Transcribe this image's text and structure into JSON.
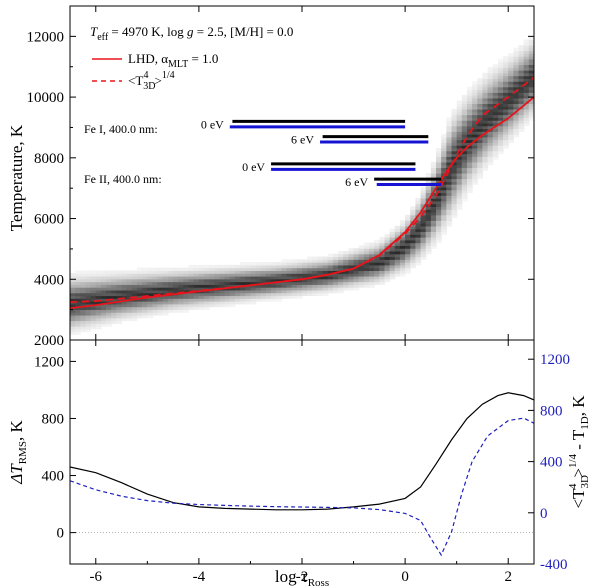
{
  "chart_data": [
    {
      "type": "heatmap",
      "panel": "top",
      "ylabel": "Temperature, K",
      "xlim": [
        -6.5,
        2.5
      ],
      "ylim": [
        2000,
        13000
      ],
      "yticks": [
        2000,
        4000,
        6000,
        8000,
        10000,
        12000
      ],
      "ytick_labels": [
        "2000",
        "4000",
        "6000",
        "8000",
        "10000",
        "12000"
      ],
      "title_params": {
        "teff_sym": "T",
        "teff_sub": "eff",
        "teff_val": " = 4970 K, log ",
        "g_sym": "g",
        "g_val": " = 2.5, [M/H] = 0.0"
      },
      "legend": {
        "lhd_label": "LHD, α",
        "lhd_sub": "MLT",
        "lhd_val": " = 1.0",
        "avg_label_a": "<T",
        "avg_label_sub": "3D",
        "avg_label_sup": "4",
        "avg_label_b": ">",
        "avg_label_sup2": "1/4"
      },
      "heatmap_band": {
        "x": [
          -6.5,
          -5.5,
          -4.5,
          -3.5,
          -2.5,
          -1.5,
          -0.5,
          0.0,
          0.3,
          0.6,
          0.9,
          1.2,
          1.6,
          2.0,
          2.5
        ],
        "median": [
          3200,
          3450,
          3650,
          3800,
          3950,
          4150,
          4550,
          5100,
          5700,
          6600,
          7700,
          8500,
          9300,
          9900,
          10700
        ],
        "halfwidth": [
          900,
          750,
          650,
          600,
          550,
          550,
          650,
          800,
          1000,
          1300,
          1600,
          1500,
          1400,
          1300,
          1200
        ]
      },
      "series": [
        {
          "name": "LHD, αMLT = 1.0",
          "color": "#e8141b",
          "style": "solid",
          "x": [
            -6.5,
            -6.0,
            -5.0,
            -4.0,
            -3.0,
            -2.0,
            -1.5,
            -1.0,
            -0.5,
            0.0,
            0.3,
            0.6,
            0.8,
            1.0,
            1.2,
            1.5,
            2.0,
            2.5
          ],
          "y": [
            3050,
            3150,
            3400,
            3600,
            3800,
            4000,
            4150,
            4350,
            4800,
            5550,
            6200,
            7000,
            7550,
            8000,
            8350,
            8750,
            9300,
            10000
          ]
        },
        {
          "name": "<T3D^4>^1/4",
          "color": "#e8141b",
          "style": "dashed",
          "x": [
            -6.5,
            -6.0,
            -5.0,
            -4.0,
            -3.0,
            -2.0,
            -1.5,
            -1.0,
            -0.5,
            0.0,
            0.3,
            0.6,
            0.8,
            1.0,
            1.2,
            1.5,
            2.0,
            2.5
          ],
          "y": [
            3250,
            3280,
            3450,
            3620,
            3800,
            4000,
            4150,
            4350,
            4780,
            5500,
            6050,
            6750,
            7400,
            8100,
            8700,
            9400,
            10000,
            10650
          ]
        }
      ],
      "formation_bars": [
        {
          "group": "Fe I, 400.0 nm:",
          "label": "0 eV",
          "black": [
            -3.35,
            0.0
          ],
          "blue": [
            -3.4,
            0.0
          ],
          "y_black": 9200,
          "y_blue": 9020
        },
        {
          "group": "Fe I, 400.0 nm:",
          "label": "6 eV",
          "black": [
            -1.6,
            0.45
          ],
          "blue": [
            -1.65,
            0.45
          ],
          "y_black": 8700,
          "y_blue": 8520
        },
        {
          "group": "Fe II, 400.0 nm:",
          "label": "0 eV",
          "black": [
            -2.6,
            0.2
          ],
          "blue": [
            -2.6,
            0.2
          ],
          "y_black": 7800,
          "y_blue": 7620
        },
        {
          "group": "Fe II, 400.0 nm:",
          "label": "6 eV",
          "black": [
            -0.6,
            0.7
          ],
          "blue": [
            -0.55,
            0.7
          ],
          "y_black": 7300,
          "y_blue": 7120
        }
      ],
      "group_labels": {
        "fe1": "Fe I, 400.0 nm:",
        "fe2": "Fe II, 400.0 nm:"
      }
    },
    {
      "type": "line",
      "panel": "bottom",
      "xlabel_sym": "log τ",
      "xlabel_sub": "Ross",
      "xlim": [
        -6.5,
        2.5
      ],
      "xticks": [
        -6,
        -4,
        -2,
        0,
        2
      ],
      "xtick_labels": [
        "-6",
        "-4",
        "-2",
        "0",
        "2"
      ],
      "left_axis": {
        "label_a": "ΔT",
        "label_sub": "RMS",
        "label_b": ", K",
        "ylim": [
          -220,
          1350
        ],
        "yticks": [
          0,
          400,
          800,
          1200
        ],
        "ytick_labels": [
          "0",
          "400",
          "800",
          "1200"
        ]
      },
      "right_axis": {
        "label_a": "<T",
        "label_sub1": "3D",
        "label_sup1": "4",
        "label_b": ">",
        "label_sup2": "1/4",
        "label_c": " - T",
        "label_sub2": "1D",
        "label_d": ", K",
        "ylim": [
          -400,
          1350
        ],
        "yticks": [
          -400,
          0,
          400,
          800,
          1200
        ],
        "ytick_labels": [
          "-400",
          "0",
          "400",
          "800",
          "1200"
        ],
        "color": "#1f1fbf"
      },
      "series": [
        {
          "name": "ΔT_RMS",
          "axis": "left",
          "color": "#000000",
          "style": "solid",
          "x": [
            -6.5,
            -6.0,
            -5.5,
            -5.0,
            -4.5,
            -4.0,
            -3.5,
            -3.0,
            -2.5,
            -2.0,
            -1.5,
            -1.0,
            -0.5,
            0.0,
            0.3,
            0.6,
            0.9,
            1.2,
            1.5,
            1.8,
            2.0,
            2.3,
            2.5
          ],
          "y": [
            460,
            420,
            350,
            270,
            210,
            180,
            170,
            165,
            160,
            160,
            165,
            180,
            200,
            240,
            320,
            480,
            650,
            800,
            900,
            960,
            980,
            960,
            930
          ]
        },
        {
          "name": "<T3D^4>^1/4 - T1D",
          "axis": "right",
          "color": "#1f1fbf",
          "style": "dashed",
          "x": [
            -6.5,
            -6.0,
            -5.5,
            -5.0,
            -4.5,
            -4.0,
            -3.5,
            -3.0,
            -2.5,
            -2.0,
            -1.5,
            -1.0,
            -0.5,
            0.0,
            0.3,
            0.5,
            0.7,
            0.9,
            1.1,
            1.3,
            1.6,
            2.0,
            2.3,
            2.5
          ],
          "y": [
            250,
            180,
            130,
            95,
            75,
            65,
            58,
            52,
            48,
            45,
            42,
            38,
            25,
            -5,
            -60,
            -200,
            -330,
            -150,
            150,
            400,
            600,
            720,
            740,
            700
          ]
        }
      ]
    }
  ]
}
